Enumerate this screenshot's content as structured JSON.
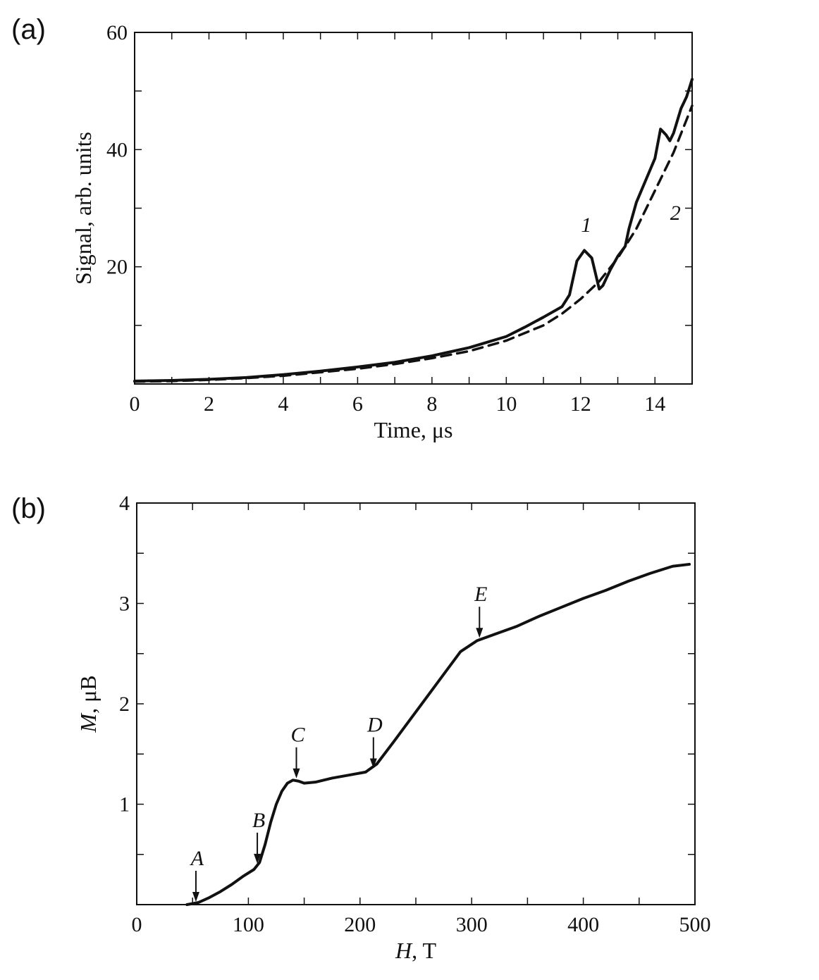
{
  "panels": {
    "a": {
      "label": "(a)"
    },
    "b": {
      "label": "(b)"
    }
  },
  "chart_data": [
    {
      "type": "line",
      "panel": "(a)",
      "title": "",
      "xlabel": "Time, μs",
      "ylabel": "Signal, arb. units",
      "xlim": [
        0,
        15
      ],
      "ylim": [
        0,
        60
      ],
      "xticks": [
        0,
        2,
        4,
        6,
        8,
        10,
        12,
        14
      ],
      "yticks": [
        20,
        40,
        60
      ],
      "x_minor_step": 1,
      "y_minor_step": 10,
      "series": [
        {
          "name": "1",
          "style": "solid",
          "x": [
            0,
            1,
            2,
            3,
            4,
            5,
            6,
            7,
            8,
            9,
            10,
            10.5,
            11,
            11.5,
            11.7,
            11.9,
            12.1,
            12.3,
            12.5,
            12.6,
            12.8,
            13.0,
            13.2,
            13.3,
            13.5,
            13.8,
            14.0,
            14.15,
            14.3,
            14.4,
            14.5,
            14.7,
            14.85,
            15.0
          ],
          "y": [
            0.5,
            0.6,
            0.8,
            1.1,
            1.6,
            2.2,
            2.9,
            3.7,
            4.8,
            6.2,
            8.1,
            9.7,
            11.4,
            13.2,
            15.2,
            21.0,
            22.8,
            21.5,
            16.2,
            16.8,
            19.5,
            21.8,
            23.5,
            26.5,
            31.0,
            35.5,
            38.5,
            43.5,
            42.5,
            41.5,
            42.8,
            47.0,
            49.0,
            52.0
          ]
        },
        {
          "name": "2",
          "style": "dashed",
          "x": [
            0,
            1,
            2,
            3,
            4,
            5,
            6,
            7,
            8,
            9,
            10,
            11,
            11.5,
            12,
            12.5,
            13,
            13.5,
            14,
            14.5,
            15
          ],
          "y": [
            0.4,
            0.5,
            0.7,
            1.0,
            1.4,
            2.0,
            2.6,
            3.4,
            4.4,
            5.6,
            7.4,
            10.0,
            12.0,
            14.5,
            17.5,
            21.5,
            26.5,
            33.0,
            39.5,
            47.5
          ]
        }
      ],
      "annotations": [
        {
          "text": "1",
          "x": 12.15,
          "y": 26
        },
        {
          "text": "2",
          "x": 14.55,
          "y": 28
        }
      ]
    },
    {
      "type": "line",
      "panel": "(b)",
      "title": "",
      "xlabel_italic": "H",
      "xlabel_rest": ", T",
      "ylabel_italic": "M",
      "ylabel_rest": ", μB",
      "xlim": [
        0,
        500
      ],
      "ylim": [
        0,
        4
      ],
      "xticks": [
        0,
        100,
        200,
        300,
        400,
        500
      ],
      "yticks": [
        1,
        2,
        3,
        4
      ],
      "x_minor_step": 50,
      "y_minor_step": 0.5,
      "series": [
        {
          "name": "M(H)",
          "style": "solid",
          "x": [
            45,
            55,
            65,
            75,
            85,
            95,
            105,
            110,
            115,
            120,
            125,
            130,
            135,
            140,
            145,
            150,
            160,
            175,
            190,
            205,
            215,
            230,
            250,
            270,
            290,
            305,
            320,
            340,
            360,
            380,
            400,
            420,
            440,
            460,
            480,
            495
          ],
          "y": [
            0,
            0.02,
            0.07,
            0.13,
            0.2,
            0.28,
            0.35,
            0.42,
            0.6,
            0.82,
            1.0,
            1.13,
            1.21,
            1.24,
            1.23,
            1.21,
            1.22,
            1.26,
            1.29,
            1.32,
            1.4,
            1.62,
            1.92,
            2.22,
            2.52,
            2.63,
            2.69,
            2.77,
            2.87,
            2.96,
            3.05,
            3.13,
            3.22,
            3.3,
            3.37,
            3.39
          ]
        }
      ],
      "annotations": [
        {
          "text": "A",
          "x": 53,
          "y": 0.0
        },
        {
          "text": "B",
          "x": 108,
          "y": 0.38
        },
        {
          "text": "C",
          "x": 143,
          "y": 1.23
        },
        {
          "text": "D",
          "x": 212,
          "y": 1.33
        },
        {
          "text": "E",
          "x": 307,
          "y": 2.63
        }
      ]
    }
  ]
}
